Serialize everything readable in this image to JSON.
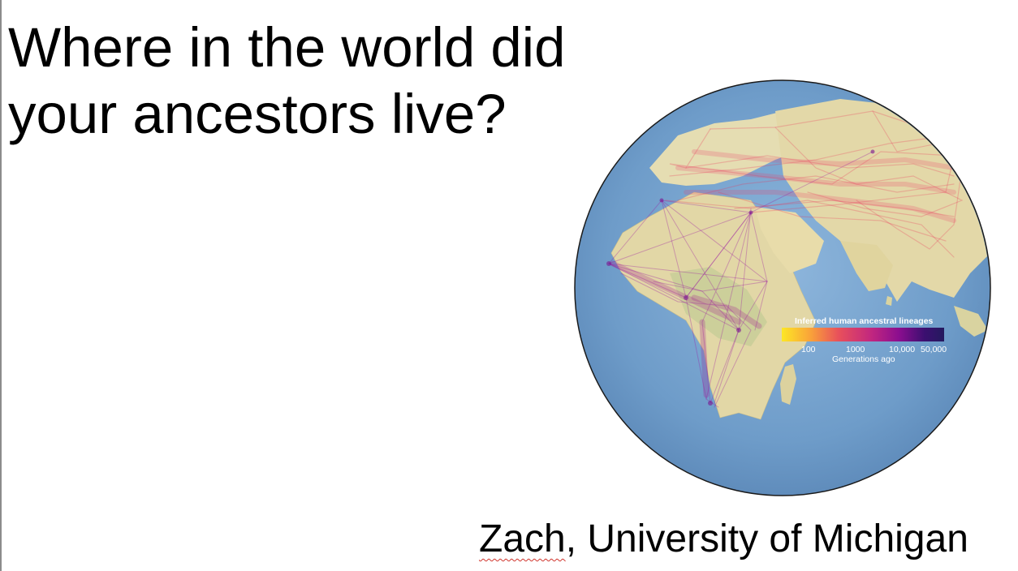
{
  "slide": {
    "title_line1": "Where in the world did",
    "title_line2": "your ancestors live?",
    "byline_name": "Zach",
    "byline_rest": ", University of Michigan",
    "spellcheck_color": "#d0342c"
  },
  "figure": {
    "legend_title": "Inferred human ancestral lineages",
    "legend_ticks": [
      "100",
      "1000",
      "10,000",
      "50,000"
    ],
    "legend_axis_label": "Generations ago",
    "colorscale": [
      "#fde725",
      "#f9a13a",
      "#e8505b",
      "#c2277f",
      "#8c0e8f",
      "#3b0f70",
      "#241a5e"
    ]
  },
  "colors": {
    "ocean": "#6d9ac8",
    "land": "#e3d9a9",
    "lineage_red": "#e8365b",
    "lineage_purple": "#8a1a9b"
  }
}
